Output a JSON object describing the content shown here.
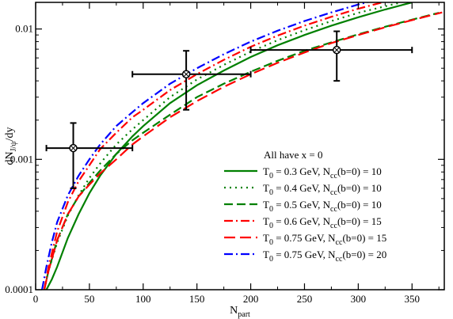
{
  "chart_data": {
    "type": "line",
    "xlabel": "N",
    "xlabel_sub": "part",
    "ylabel": "dN",
    "ylabel_sub": "J/ψ",
    "ylabel_tail": "/dy",
    "xlim": [
      0,
      380
    ],
    "ylim": [
      0.0001,
      0.016
    ],
    "yscale": "log",
    "x_ticks": [
      0,
      50,
      100,
      150,
      200,
      250,
      300,
      350
    ],
    "x_tick_labels": [
      "0",
      "50",
      "100",
      "150",
      "200",
      "250",
      "300",
      "350"
    ],
    "y_ticks": [
      0.0001,
      0.001,
      0.01
    ],
    "y_tick_labels": [
      "0.0001",
      "0.001",
      "0.01"
    ],
    "grid": false,
    "legend_placement": "bottom-right",
    "legend_title": "All have x = 0",
    "series": [
      {
        "name_main": "T",
        "name_sub": "0",
        "name_mid": " = 0.3 GeV, N",
        "name_sub2": "cc",
        "name_tail": "(b=0) = 10",
        "color": "#008000",
        "dash": "solid",
        "x": [
          10,
          15,
          20,
          30,
          40,
          50,
          60,
          75,
          90,
          100,
          125,
          150,
          175,
          200,
          225,
          250,
          275,
          300,
          325,
          350
        ],
        "y": [
          0.0001,
          0.00012,
          0.00015,
          0.00025,
          0.00038,
          0.00055,
          0.00075,
          0.0011,
          0.0015,
          0.0018,
          0.0027,
          0.0037,
          0.0048,
          0.0061,
          0.0075,
          0.009,
          0.0106,
          0.0123,
          0.0141,
          0.016
        ]
      },
      {
        "name_main": "T",
        "name_sub": "0",
        "name_mid": " = 0.4 GeV, N",
        "name_sub2": "cc",
        "name_tail": "(b=0) = 10",
        "color": "#008000",
        "dash": "dotted",
        "x": [
          8,
          12,
          20,
          30,
          40,
          50,
          60,
          75,
          90,
          100,
          125,
          150,
          175,
          200,
          225,
          250,
          275,
          300,
          340
        ],
        "y": [
          0.0001,
          0.00014,
          0.00023,
          0.00037,
          0.00053,
          0.00072,
          0.00093,
          0.0013,
          0.0017,
          0.002,
          0.003,
          0.0041,
          0.0053,
          0.0067,
          0.0082,
          0.0098,
          0.0115,
          0.0133,
          0.016
        ]
      },
      {
        "name_main": "T",
        "name_sub": "0",
        "name_mid": " = 0.5 GeV, N",
        "name_sub2": "cc",
        "name_tail": "(b=0) = 10",
        "color": "#008000",
        "dash": "dashed",
        "x": [
          8,
          12,
          20,
          30,
          40,
          50,
          60,
          75,
          90,
          100,
          125,
          150,
          175,
          200,
          225,
          250,
          275,
          300,
          325,
          350,
          375
        ],
        "y": [
          0.0001,
          0.00014,
          0.00024,
          0.00038,
          0.00052,
          0.00066,
          0.00082,
          0.0011,
          0.0014,
          0.0016,
          0.0022,
          0.003,
          0.0038,
          0.0047,
          0.0057,
          0.0068,
          0.0079,
          0.0091,
          0.0104,
          0.0118,
          0.0133
        ]
      },
      {
        "name_main": "T",
        "name_sub": "0",
        "name_mid": " = 0.6 GeV, N",
        "name_sub2": "cc",
        "name_tail": "(b=0) = 15",
        "color": "#ff0000",
        "dash": "dashdot",
        "x": [
          8,
          12,
          20,
          30,
          40,
          50,
          60,
          75,
          90,
          100,
          125,
          150,
          175,
          200,
          225,
          250,
          275,
          300,
          325
        ],
        "y": [
          0.0001,
          0.00015,
          0.00028,
          0.00047,
          0.00068,
          0.0009,
          0.0012,
          0.0016,
          0.0021,
          0.0024,
          0.0034,
          0.0045,
          0.0058,
          0.0073,
          0.0089,
          0.0106,
          0.0124,
          0.0143,
          0.0162
        ]
      },
      {
        "name_main": "T",
        "name_sub": "0",
        "name_mid": " = 0.75 GeV, N",
        "name_sub2": "cc",
        "name_tail": "(b=0) = 15",
        "color": "#ff0000",
        "dash": "longdash",
        "x": [
          8,
          12,
          20,
          30,
          40,
          50,
          60,
          75,
          90,
          100,
          125,
          150,
          175,
          200,
          225,
          250,
          275,
          300,
          325,
          350,
          378
        ],
        "y": [
          0.0001,
          0.00014,
          0.00024,
          0.00038,
          0.00052,
          0.00064,
          0.00078,
          0.001,
          0.0013,
          0.0015,
          0.0021,
          0.0028,
          0.0036,
          0.0045,
          0.0055,
          0.0066,
          0.0078,
          0.009,
          0.0103,
          0.0117,
          0.0134
        ]
      },
      {
        "name_main": "T",
        "name_sub": "0",
        "name_mid": " = 0.75 GeV, N",
        "name_sub2": "cc",
        "name_tail": "(b=0) = 20",
        "color": "#0000ff",
        "dash": "dashdot",
        "x": [
          6,
          10,
          15,
          20,
          30,
          40,
          50,
          60,
          75,
          90,
          100,
          125,
          150,
          175,
          200,
          225,
          250,
          275,
          300,
          315
        ],
        "y": [
          0.0001,
          0.00015,
          0.00023,
          0.00033,
          0.00053,
          0.00075,
          0.001,
          0.0013,
          0.0018,
          0.0023,
          0.0027,
          0.0038,
          0.005,
          0.0064,
          0.008,
          0.0097,
          0.0115,
          0.0134,
          0.0154,
          0.0166
        ]
      }
    ],
    "data_points": [
      {
        "x": 35,
        "y": 0.00122,
        "xerr": [
          10,
          90
        ],
        "yerr": [
          0.0006,
          0.0019
        ]
      },
      {
        "x": 140,
        "y": 0.0045,
        "xerr": [
          90,
          200
        ],
        "yerr": [
          0.0024,
          0.0068
        ]
      },
      {
        "x": 280,
        "y": 0.0069,
        "xerr": [
          200,
          350
        ],
        "yerr": [
          0.004,
          0.0096
        ]
      }
    ]
  }
}
